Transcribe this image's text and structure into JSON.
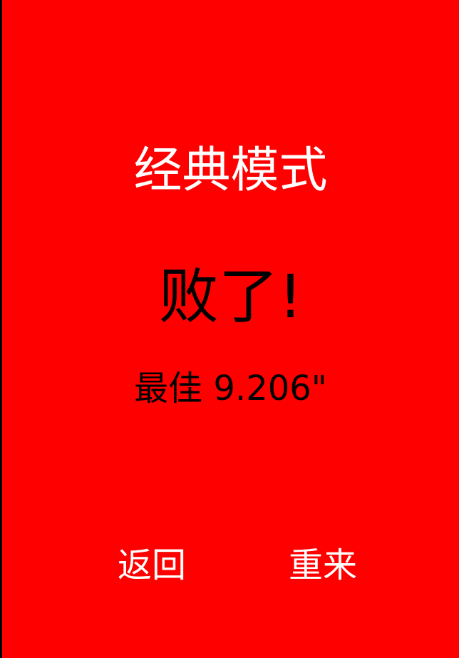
{
  "game": {
    "mode_title": "经典模式",
    "result_text": "败了!",
    "best_label": "最佳",
    "best_value": "9.206\""
  },
  "buttons": {
    "back_label": "返回",
    "retry_label": "重来"
  },
  "colors": {
    "background": "#ff0000",
    "title_text": "#ffffff",
    "result_text": "#000000",
    "button_text": "#ffffff",
    "border": "#000000"
  }
}
